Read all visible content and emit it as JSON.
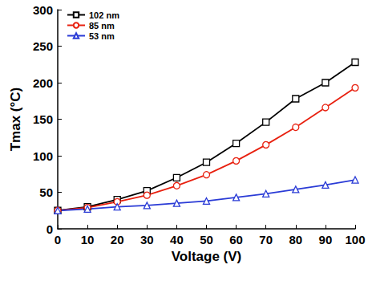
{
  "chart_data": {
    "type": "line",
    "x_label": "Voltage (V)",
    "y_label": "Tmax (°C)",
    "x": [
      0,
      10,
      20,
      30,
      40,
      50,
      60,
      70,
      80,
      90,
      100
    ],
    "xlim": [
      0,
      100
    ],
    "xticks": [
      0,
      10,
      20,
      30,
      40,
      50,
      60,
      70,
      80,
      90,
      100
    ],
    "ylim": [
      0,
      300
    ],
    "yticks": [
      0,
      50,
      100,
      150,
      200,
      250,
      300
    ],
    "grid": false,
    "legend": "upper left",
    "series": [
      {
        "name": "102 nm",
        "color": "#000000",
        "marker": "square",
        "line_style": "solid",
        "values": [
          25,
          30,
          40,
          52,
          70,
          91,
          117,
          146,
          178,
          200,
          228
        ]
      },
      {
        "name": "85 nm",
        "color": "#e8200f",
        "marker": "circle",
        "line_style": "solid",
        "values": [
          25,
          29,
          37,
          46,
          59,
          74,
          93,
          115,
          139,
          166,
          193
        ]
      },
      {
        "name": "53 nm",
        "color": "#2a3bd6",
        "marker": "triangle",
        "line_style": "solid",
        "values": [
          25,
          27,
          30,
          32,
          35,
          38,
          43,
          48,
          54,
          60,
          67
        ]
      }
    ]
  }
}
